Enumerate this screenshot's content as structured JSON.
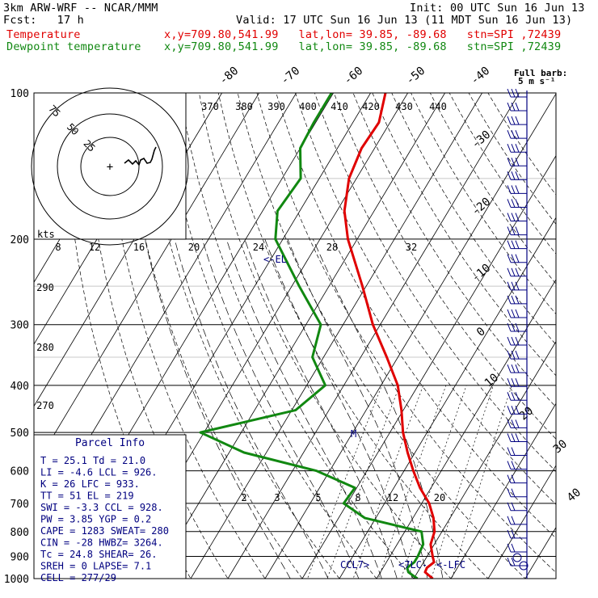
{
  "header": {
    "model": "3km ARW-WRF -- NCAR/MMM",
    "init": "Init: 00 UTC Sun 16 Jun 13",
    "fcst": "Fcst:   17 h",
    "valid": "Valid: 17 UTC Sun 16 Jun 13 (11 MDT Sun 16 Jun 13)",
    "temp_label": "Temperature",
    "temp_info": "x,y=709.80,541.99   lat,lon= 39.85, -89.68   stn=SPI ,72439",
    "dew_label": "Dewpoint temperature",
    "dew_info": "x,y=709.80,541.99   lat,lon= 39.85, -89.68   stn=SPI ,72439",
    "full_barb_1": "Full barb:",
    "full_barb_2": "5 m s⁻¹"
  },
  "colors": {
    "temperature": "#e00000",
    "dewpoint": "#118811",
    "annotation": "#000080",
    "grid": "#000000"
  },
  "chart_data": {
    "type": "line",
    "title": "",
    "pressure_axis": {
      "labels": [
        "100",
        "200",
        "300",
        "400",
        "500",
        "600",
        "700",
        "800",
        "900",
        "1000"
      ],
      "scale": "log",
      "range_hPa": [
        1000,
        100
      ]
    },
    "isotherm_labels": [
      "-80",
      "-70",
      "-60",
      "-50",
      "-40",
      "-30",
      "-20",
      "-10",
      "0",
      "10",
      "20",
      "30",
      "40"
    ],
    "theta_labels": [
      "370",
      "380",
      "390",
      "400",
      "410",
      "420",
      "430",
      "440"
    ],
    "theta_low_labels": [
      "290",
      "280",
      "270"
    ],
    "hodograph": {
      "speed_labels": [
        "75",
        "50",
        "25"
      ],
      "units_label": "kts"
    },
    "mixing_ratio_labels_upper": [
      "8",
      "12",
      "16",
      "20",
      "24",
      "28",
      "32"
    ],
    "mixing_ratio_labels_lower": [
      "2",
      "3",
      "5",
      "8",
      "12",
      "20"
    ],
    "levels_marks": {
      "el": "<-EL",
      "m": "M",
      "ccl": "CCL7>",
      "lcl": "<7LC-",
      "lfc": "<-LFC"
    },
    "series": [
      {
        "name": "Temperature",
        "points": [
          [
            1000,
            25.1
          ],
          [
            970,
            22.0
          ],
          [
            950,
            21.8
          ],
          [
            925,
            22.8
          ],
          [
            900,
            21.5
          ],
          [
            850,
            19.0
          ],
          [
            800,
            18.0
          ],
          [
            750,
            15.5
          ],
          [
            700,
            12.0
          ],
          [
            650,
            7.0
          ],
          [
            600,
            2.5
          ],
          [
            550,
            -2.0
          ],
          [
            500,
            -6.5
          ],
          [
            450,
            -10.5
          ],
          [
            400,
            -15.5
          ],
          [
            350,
            -23.0
          ],
          [
            300,
            -32.0
          ],
          [
            250,
            -41.0
          ],
          [
            200,
            -52.5
          ],
          [
            175,
            -58.0
          ],
          [
            150,
            -62.0
          ],
          [
            130,
            -63.5
          ],
          [
            115,
            -63.0
          ],
          [
            100,
            -66.0
          ]
        ]
      },
      {
        "name": "Dewpoint temperature",
        "points": [
          [
            1000,
            21.0
          ],
          [
            970,
            17.5
          ],
          [
            950,
            16.5
          ],
          [
            925,
            17.5
          ],
          [
            900,
            17.5
          ],
          [
            850,
            17.0
          ],
          [
            800,
            14.5
          ],
          [
            750,
            -3.0
          ],
          [
            700,
            -11.0
          ],
          [
            650,
            -10.5
          ],
          [
            600,
            -23.5
          ],
          [
            550,
            -46.0
          ],
          [
            500,
            -61.0
          ],
          [
            450,
            -39.0
          ],
          [
            400,
            -35.0
          ],
          [
            350,
            -43.0
          ],
          [
            300,
            -46.0
          ],
          [
            250,
            -58.0
          ],
          [
            200,
            -72.0
          ],
          [
            175,
            -76.0
          ],
          [
            150,
            -75.0
          ],
          [
            130,
            -80.0
          ],
          [
            115,
            -80.5
          ],
          [
            100,
            -80.5
          ]
        ]
      }
    ],
    "hodograph_trace": [
      [
        -2,
        -4
      ],
      [
        3,
        -8
      ],
      [
        8,
        -3
      ],
      [
        12,
        -7
      ],
      [
        16,
        -2
      ],
      [
        18,
        -8
      ],
      [
        22,
        -10
      ],
      [
        26,
        -4
      ],
      [
        30,
        -5
      ],
      [
        32,
        -9
      ],
      [
        35,
        -20
      ],
      [
        37,
        -24
      ]
    ],
    "wind_barbs_count": 35
  },
  "parcel_info": {
    "title": "Parcel Info",
    "rows": [
      "T  =   25.1  Td =  21.0",
      "LI =   -4.6  LCL =  926.",
      "K  =     26  LFC =  933.",
      "TT =     51  EL  =  219",
      "SWI =  -3.3  CCL =  928.",
      "PW =   3.85  YGP =   0.2",
      "CAPE =  1283  SWEAT=  280",
      "CIN =   -28  HWBZ= 3264.",
      "Tc =   24.8  SHEAR=  26.",
      "SREH =    0  LAPSE=  7.1",
      "CELL = 277/29"
    ]
  }
}
